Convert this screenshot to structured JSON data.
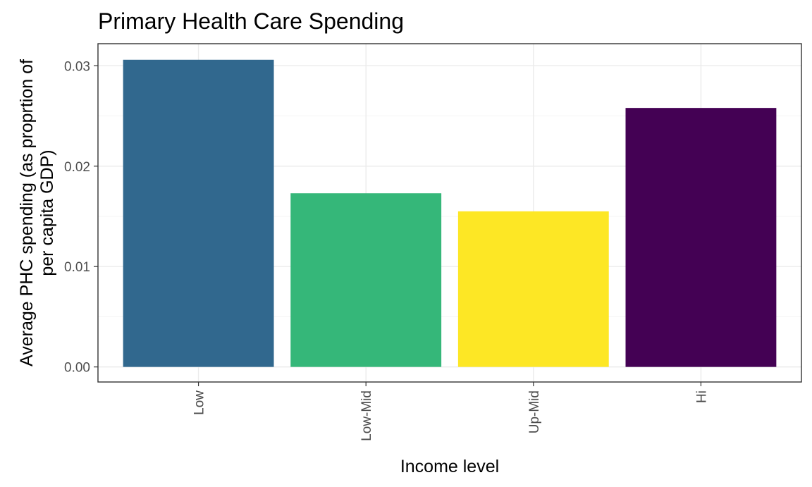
{
  "chart_data": {
    "type": "bar",
    "title": "Primary Health Care Spending",
    "xlabel": "Income level",
    "ylabel_lines": [
      "Average PHC spending (as proprtion of",
      "per capita GDP)"
    ],
    "categories": [
      "Low",
      "Low-Mid",
      "Up-Mid",
      "Hi"
    ],
    "values": [
      0.0306,
      0.0173,
      0.0155,
      0.0258
    ],
    "colors": [
      "#31688e",
      "#35b779",
      "#fde725",
      "#440154"
    ],
    "ylim": [
      -0.0015,
      0.0322
    ],
    "yticks": [
      0,
      0.01,
      0.02,
      0.03
    ],
    "ytick_labels": [
      "0.00",
      "0.01",
      "0.02",
      "0.03"
    ],
    "grid": true,
    "legend": "none"
  }
}
